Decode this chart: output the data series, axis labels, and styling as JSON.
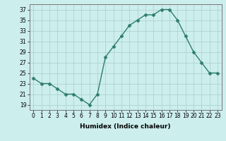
{
  "x": [
    0,
    1,
    2,
    3,
    4,
    5,
    6,
    7,
    8,
    9,
    10,
    11,
    12,
    13,
    14,
    15,
    16,
    17,
    18,
    19,
    20,
    21,
    22,
    23
  ],
  "y": [
    24,
    23,
    23,
    22,
    21,
    21,
    20,
    19,
    21,
    28,
    30,
    32,
    34,
    35,
    36,
    36,
    37,
    37,
    35,
    32,
    29,
    27,
    25,
    25
  ],
  "line_color": "#2e7d6e",
  "marker": "D",
  "marker_size": 2.5,
  "linewidth": 1.0,
  "background_color": "#cceeed",
  "grid_color": "#aacccc",
  "xlabel": "Humidex (Indice chaleur)",
  "xlim": [
    -0.5,
    23.5
  ],
  "ylim": [
    18,
    38
  ],
  "yticks": [
    19,
    21,
    23,
    25,
    27,
    29,
    31,
    33,
    35,
    37
  ],
  "xticks": [
    0,
    1,
    2,
    3,
    4,
    5,
    6,
    7,
    8,
    9,
    10,
    11,
    12,
    13,
    14,
    15,
    16,
    17,
    18,
    19,
    20,
    21,
    22,
    23
  ],
  "tick_fontsize": 5.5,
  "xlabel_fontsize": 6.5,
  "xlabel_fontweight": "bold"
}
